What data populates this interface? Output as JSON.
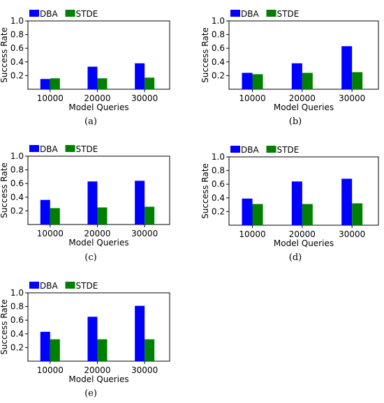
{
  "chart_data": [
    {
      "type": "bar",
      "panel_label": "(a)",
      "categories": [
        "10000",
        "20000",
        "30000"
      ],
      "series": [
        {
          "name": "DBA",
          "color": "#0000ff",
          "values": [
            0.15,
            0.33,
            0.38
          ]
        },
        {
          "name": "STDE",
          "color": "#008000",
          "values": [
            0.16,
            0.16,
            0.17
          ]
        }
      ],
      "xlabel": "Model Queries",
      "ylabel": "Success Rate",
      "ylim": [
        0,
        1.0
      ],
      "yticks": [
        "0.2",
        "0.4",
        "0.6",
        "0.8",
        "1.0"
      ],
      "legend": "top-left",
      "grid": false
    },
    {
      "type": "bar",
      "panel_label": "(b)",
      "categories": [
        "10000",
        "20000",
        "30000"
      ],
      "series": [
        {
          "name": "DBA",
          "color": "#0000ff",
          "values": [
            0.24,
            0.38,
            0.63
          ]
        },
        {
          "name": "STDE",
          "color": "#008000",
          "values": [
            0.22,
            0.24,
            0.25
          ]
        }
      ],
      "xlabel": "Model Queries",
      "ylabel": "Success Rate",
      "ylim": [
        0,
        1.0
      ],
      "yticks": [
        "0.2",
        "0.4",
        "0.6",
        "0.8",
        "1.0"
      ],
      "legend": "top-left",
      "grid": false
    },
    {
      "type": "bar",
      "panel_label": "(c)",
      "categories": [
        "10000",
        "20000",
        "30000"
      ],
      "series": [
        {
          "name": "DBA",
          "color": "#0000ff",
          "values": [
            0.36,
            0.63,
            0.64
          ]
        },
        {
          "name": "STDE",
          "color": "#008000",
          "values": [
            0.24,
            0.25,
            0.26
          ]
        }
      ],
      "xlabel": "Model Queries",
      "ylabel": "Success Rate",
      "ylim": [
        0,
        1.0
      ],
      "yticks": [
        "0.2",
        "0.4",
        "0.6",
        "0.8",
        "1.0"
      ],
      "legend": "top-left",
      "grid": false
    },
    {
      "type": "bar",
      "panel_label": "(d)",
      "categories": [
        "10000",
        "20000",
        "30000"
      ],
      "series": [
        {
          "name": "DBA",
          "color": "#0000ff",
          "values": [
            0.39,
            0.64,
            0.68
          ]
        },
        {
          "name": "STDE",
          "color": "#008000",
          "values": [
            0.31,
            0.31,
            0.32
          ]
        }
      ],
      "xlabel": "Model Queries",
      "ylabel": "Success Rate",
      "ylim": [
        0,
        1.0
      ],
      "yticks": [
        "0.2",
        "0.4",
        "0.6",
        "0.8",
        "1.0"
      ],
      "legend": "top-left",
      "grid": false
    },
    {
      "type": "bar",
      "panel_label": "(e)",
      "categories": [
        "10000",
        "20000",
        "30000"
      ],
      "series": [
        {
          "name": "DBA",
          "color": "#0000ff",
          "values": [
            0.43,
            0.65,
            0.81
          ]
        },
        {
          "name": "STDE",
          "color": "#008000",
          "values": [
            0.32,
            0.32,
            0.32
          ]
        }
      ],
      "xlabel": "Model Queries",
      "ylabel": "Success Rate",
      "ylim": [
        0,
        1.0
      ],
      "yticks": [
        "0.2",
        "0.4",
        "0.6",
        "0.8",
        "1.0"
      ],
      "legend": "top-left",
      "grid": false
    }
  ]
}
